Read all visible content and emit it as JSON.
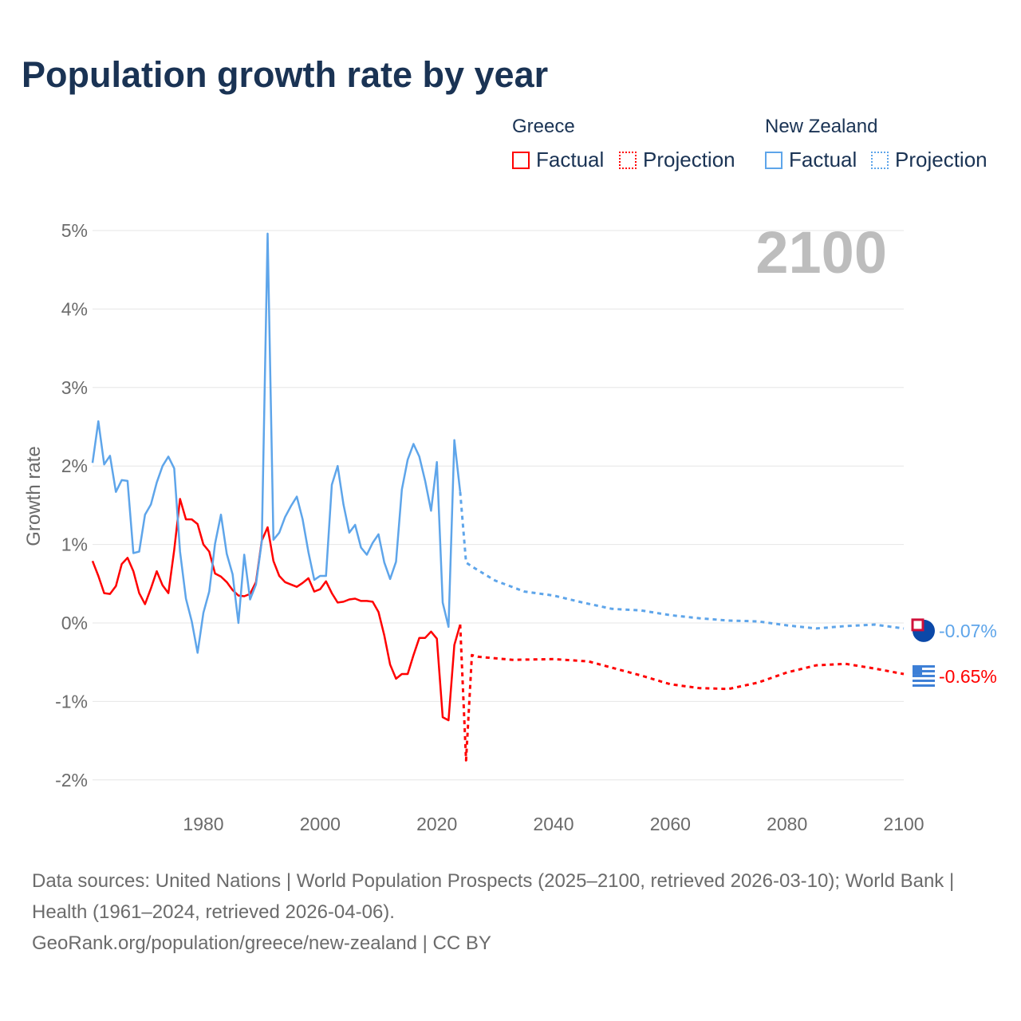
{
  "title": "Population growth rate by year",
  "legend": {
    "groups": [
      {
        "name": "Greece",
        "color": "#ff0000",
        "items": [
          "Factual",
          "Projection"
        ]
      },
      {
        "name": "New Zealand",
        "color": "#5ea5ea",
        "items": [
          "Factual",
          "Projection"
        ]
      }
    ]
  },
  "chart_data": {
    "type": "line",
    "title": "Population growth rate by year",
    "xlabel": "",
    "ylabel": "Growth rate",
    "xlim": [
      1961,
      2100
    ],
    "ylim": [
      -2.2,
      5
    ],
    "yticks": [
      -2,
      -1,
      0,
      1,
      2,
      3,
      4,
      5
    ],
    "ytick_labels": [
      "-2%",
      "-1%",
      "0%",
      "1%",
      "2%",
      "3%",
      "4%",
      "5%"
    ],
    "xticks": [
      1980,
      2000,
      2020,
      2040,
      2060,
      2080,
      2100
    ],
    "xtick_labels": [
      "1980",
      "2000",
      "2020",
      "2040",
      "2060",
      "2080",
      "2100"
    ],
    "grid": true,
    "year_overlay": "2100",
    "series": [
      {
        "name": "Greece Factual",
        "color": "#ff0000",
        "style": "solid",
        "x_start": 1961,
        "values": [
          0.79,
          0.6,
          0.38,
          0.37,
          0.47,
          0.75,
          0.83,
          0.66,
          0.38,
          0.24,
          0.44,
          0.66,
          0.48,
          0.38,
          0.93,
          1.58,
          1.32,
          1.32,
          1.26,
          1.0,
          0.91,
          0.63,
          0.59,
          0.52,
          0.42,
          0.35,
          0.34,
          0.37,
          0.52,
          1.05,
          1.22,
          0.79,
          0.6,
          0.52,
          0.49,
          0.46,
          0.51,
          0.57,
          0.4,
          0.43,
          0.53,
          0.38,
          0.26,
          0.27,
          0.3,
          0.31,
          0.28,
          0.28,
          0.27,
          0.14,
          -0.16,
          -0.53,
          -0.71,
          -0.65,
          -0.65,
          -0.41,
          -0.19,
          -0.19,
          -0.11,
          -0.2,
          -1.2,
          -1.24,
          -0.28,
          -0.02
        ]
      },
      {
        "name": "Greece Projection",
        "color": "#ff0000",
        "style": "dotted",
        "x": [
          2024,
          2025,
          2026,
          2027,
          2030,
          2033,
          2040,
          2046,
          2050,
          2055,
          2060,
          2065,
          2070,
          2075,
          2080,
          2085,
          2090,
          2095,
          2100
        ],
        "values": [
          -0.02,
          -1.75,
          -0.41,
          -0.43,
          -0.45,
          -0.47,
          -0.46,
          -0.49,
          -0.57,
          -0.67,
          -0.78,
          -0.83,
          -0.84,
          -0.76,
          -0.63,
          -0.54,
          -0.52,
          -0.58,
          -0.65
        ]
      },
      {
        "name": "New Zealand Factual",
        "color": "#5ea5ea",
        "style": "solid",
        "x_start": 1961,
        "values": [
          2.04,
          2.57,
          2.02,
          2.13,
          1.67,
          1.82,
          1.81,
          0.89,
          0.91,
          1.38,
          1.51,
          1.79,
          2.0,
          2.12,
          1.97,
          0.91,
          0.31,
          0.02,
          -0.38,
          0.13,
          0.4,
          1.01,
          1.38,
          0.88,
          0.62,
          0.0,
          0.87,
          0.3,
          0.49,
          1.04,
          4.96,
          1.06,
          1.15,
          1.35,
          1.49,
          1.61,
          1.32,
          0.9,
          0.55,
          0.6,
          0.6,
          1.76,
          2.0,
          1.51,
          1.15,
          1.25,
          0.96,
          0.87,
          1.02,
          1.13,
          0.77,
          0.56,
          0.78,
          1.7,
          2.08,
          2.28,
          2.12,
          1.81,
          1.43,
          2.05,
          0.26,
          -0.05,
          2.33,
          1.67
        ]
      },
      {
        "name": "New Zealand Projection",
        "color": "#5ea5ea",
        "style": "dotted",
        "x": [
          2024,
          2025,
          2026,
          2030,
          2035,
          2040,
          2045,
          2050,
          2055,
          2060,
          2065,
          2070,
          2075,
          2080,
          2085,
          2090,
          2095,
          2100
        ],
        "values": [
          1.67,
          0.77,
          0.72,
          0.54,
          0.4,
          0.35,
          0.26,
          0.18,
          0.16,
          0.1,
          0.06,
          0.03,
          0.02,
          -0.03,
          -0.07,
          -0.04,
          -0.02,
          -0.07
        ]
      }
    ],
    "end_labels": [
      {
        "country": "New Zealand",
        "value": -0.07,
        "text": "-0.07%",
        "color": "#5ea5ea"
      },
      {
        "country": "Greece",
        "value": -0.65,
        "text": "-0.65%",
        "color": "#ff0000"
      }
    ]
  },
  "footer": {
    "sources": "Data sources: United Nations | World Population Prospects (2025–2100, retrieved 2026-03-10); World Bank | Health (1961–2024, retrieved 2026-04-06).",
    "link": "GeoRank.org/population/greece/new-zealand | CC BY"
  }
}
